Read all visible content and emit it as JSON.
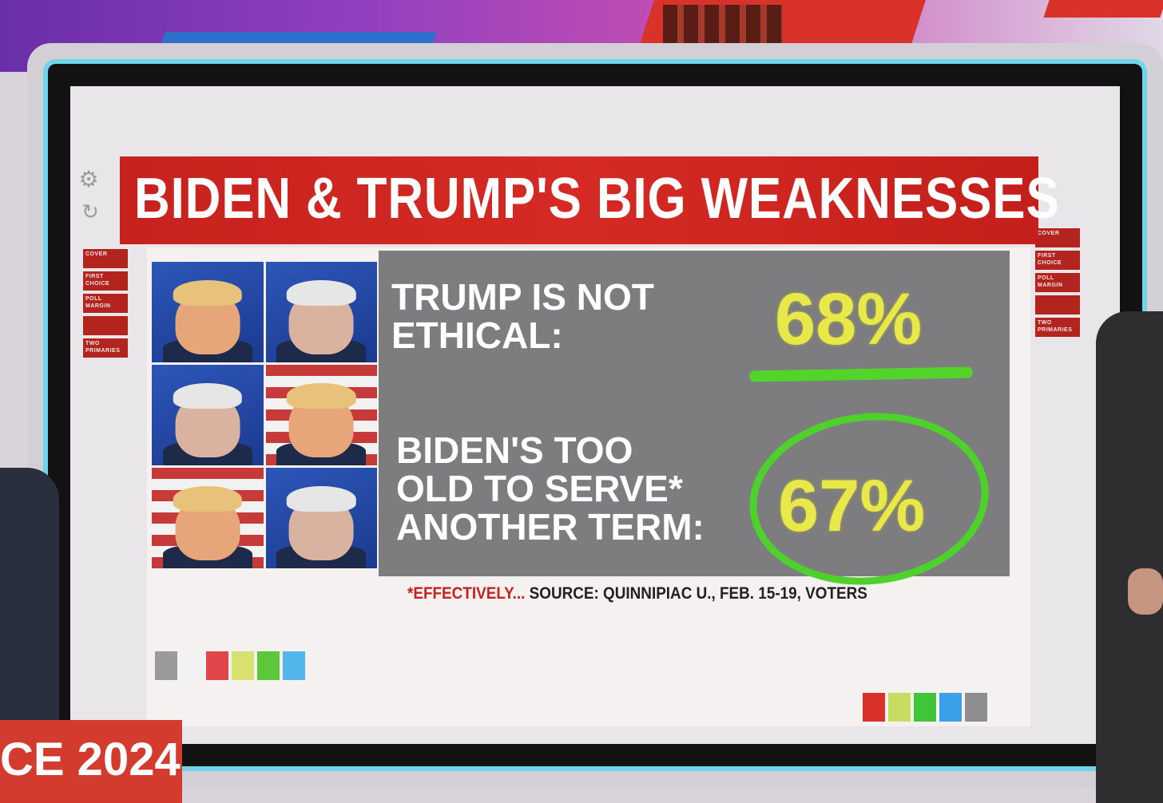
{
  "graphic": {
    "title": "BIDEN & TRUMP'S BIG WEAKNESSES",
    "stats": [
      {
        "label": "TRUMP IS NOT\nETHICAL:",
        "value": "68%",
        "emphasis": "underline"
      },
      {
        "label": "BIDEN'S TOO\nOLD TO SERVE*\nANOTHER TERM:",
        "value": "67%",
        "emphasis": "circle"
      }
    ],
    "footnote_asterisk": "*EFFECTIVELY...",
    "footnote_source": " SOURCE: QUINNIPIAC U., FEB. 15-19, VOTERS",
    "photos": [
      {
        "subject": "trump",
        "background": "blue"
      },
      {
        "subject": "biden",
        "background": "blue"
      },
      {
        "subject": "biden",
        "background": "blue"
      },
      {
        "subject": "trump",
        "background": "flag"
      },
      {
        "subject": "trump",
        "background": "flag"
      },
      {
        "subject": "biden",
        "background": "blue"
      }
    ]
  },
  "menu_left": [
    "COVER",
    "FIRST CHOICE",
    "POLL MARGIN",
    "",
    "TWO PRIMARIES"
  ],
  "menu_right": [
    "COVER",
    "FIRST CHOICE",
    "POLL MARGIN",
    "",
    "TWO PRIMARIES"
  ],
  "swatches_left": [
    "#9a9a9a",
    "#f2f2f2",
    "#e0474a",
    "#d8e070",
    "#5cc73c",
    "#53b6e8"
  ],
  "swatches_right": [
    "#d8322a",
    "#c9dc62",
    "#3fc43a",
    "#3aa0e8",
    "#8e8e8e"
  ],
  "chyron": {
    "text": "CE 2024"
  },
  "colors": {
    "banner": "#c7221e",
    "value": "#e8e84a",
    "marker": "#4fd12b",
    "panel": "#7d7d80"
  }
}
